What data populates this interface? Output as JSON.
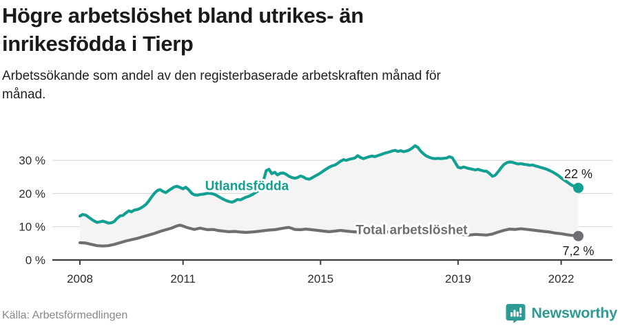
{
  "header": {
    "title": "Högre arbetslöshet bland utrikes- än inrikesfödda i Tierp",
    "subtitle": "Arbetssökande som andel av den registerbaserade arbetskraften månad för månad."
  },
  "footer": {
    "source": "Källa: Arbetsförmedlingen",
    "brand": "Newsworthy"
  },
  "colors": {
    "foreign_born_line": "#12a092",
    "total_line": "#6e6e73",
    "fill_between": "#f4f4f4",
    "axis": "#3d3d3d",
    "grid": "#d9d9d9",
    "brand_teal": "#2d9a94"
  },
  "chart_data": {
    "type": "line",
    "title": "Högre arbetslöshet bland utrikes- än inrikesfödda i Tierp",
    "subtitle": "Arbetssökande som andel av den registerbaserade arbetskraften månad för månad.",
    "xlabel": "",
    "ylabel": "",
    "x_axis": {
      "ticks": [
        2008,
        2011,
        2015,
        2019,
        2022
      ],
      "range": [
        2008.0,
        2022.6
      ]
    },
    "y_axis": {
      "tick_values": [
        0,
        10,
        20,
        30
      ],
      "tick_labels": [
        "0 %",
        "10 %",
        "20 %",
        "30 %"
      ],
      "range": [
        0,
        36
      ],
      "grid": true
    },
    "legend_position": "inline-labels",
    "fill_between_series": true,
    "series": [
      {
        "name": "Utlandsfödda",
        "color": "#12a092",
        "end_label": "22 %",
        "label_at": [
          2012.86,
          22.36
        ],
        "points": [
          [
            2008.0,
            13.2
          ],
          [
            2008.08,
            13.7
          ],
          [
            2008.17,
            13.5
          ],
          [
            2008.25,
            12.9
          ],
          [
            2008.33,
            12.3
          ],
          [
            2008.42,
            11.7
          ],
          [
            2008.5,
            11.3
          ],
          [
            2008.58,
            11.5
          ],
          [
            2008.67,
            11.7
          ],
          [
            2008.75,
            11.4
          ],
          [
            2008.83,
            11.1
          ],
          [
            2008.92,
            11.2
          ],
          [
            2009.0,
            11.6
          ],
          [
            2009.08,
            12.5
          ],
          [
            2009.17,
            13.3
          ],
          [
            2009.25,
            13.4
          ],
          [
            2009.33,
            14.1
          ],
          [
            2009.42,
            14.8
          ],
          [
            2009.5,
            14.5
          ],
          [
            2009.58,
            15.0
          ],
          [
            2009.67,
            15.2
          ],
          [
            2009.75,
            15.5
          ],
          [
            2009.83,
            16.0
          ],
          [
            2009.92,
            16.7
          ],
          [
            2010.0,
            17.7
          ],
          [
            2010.08,
            18.9
          ],
          [
            2010.17,
            20.1
          ],
          [
            2010.25,
            20.9
          ],
          [
            2010.33,
            21.2
          ],
          [
            2010.42,
            20.6
          ],
          [
            2010.5,
            20.3
          ],
          [
            2010.58,
            20.9
          ],
          [
            2010.67,
            21.5
          ],
          [
            2010.75,
            22.0
          ],
          [
            2010.83,
            22.2
          ],
          [
            2010.92,
            21.8
          ],
          [
            2011.0,
            21.4
          ],
          [
            2011.08,
            21.9
          ],
          [
            2011.17,
            21.1
          ],
          [
            2011.25,
            20.1
          ],
          [
            2011.33,
            19.6
          ],
          [
            2011.42,
            19.5
          ],
          [
            2011.5,
            19.7
          ],
          [
            2011.58,
            19.8
          ],
          [
            2011.67,
            20.0
          ],
          [
            2011.75,
            20.1
          ],
          [
            2011.83,
            20.0
          ],
          [
            2011.92,
            19.7
          ],
          [
            2012.0,
            19.3
          ],
          [
            2012.08,
            18.8
          ],
          [
            2012.17,
            18.3
          ],
          [
            2012.25,
            17.9
          ],
          [
            2012.33,
            17.6
          ],
          [
            2012.42,
            17.4
          ],
          [
            2012.5,
            17.7
          ],
          [
            2012.58,
            18.2
          ],
          [
            2012.67,
            18.1
          ],
          [
            2012.75,
            18.5
          ],
          [
            2012.83,
            18.9
          ],
          [
            2012.92,
            19.2
          ],
          [
            2013.0,
            19.6
          ],
          [
            2013.08,
            20.1
          ],
          [
            2013.17,
            20.7
          ],
          [
            2013.25,
            21.6
          ],
          [
            2013.33,
            23.6
          ],
          [
            2013.42,
            26.9
          ],
          [
            2013.5,
            27.3
          ],
          [
            2013.58,
            26.0
          ],
          [
            2013.67,
            26.4
          ],
          [
            2013.75,
            25.6
          ],
          [
            2013.83,
            26.1
          ],
          [
            2013.92,
            26.2
          ],
          [
            2014.0,
            25.8
          ],
          [
            2014.08,
            25.2
          ],
          [
            2014.17,
            24.8
          ],
          [
            2014.25,
            24.6
          ],
          [
            2014.33,
            24.8
          ],
          [
            2014.42,
            25.3
          ],
          [
            2014.5,
            25.0
          ],
          [
            2014.58,
            24.5
          ],
          [
            2014.67,
            24.3
          ],
          [
            2014.75,
            24.7
          ],
          [
            2014.83,
            25.2
          ],
          [
            2014.92,
            25.7
          ],
          [
            2015.0,
            26.2
          ],
          [
            2015.08,
            26.8
          ],
          [
            2015.17,
            27.4
          ],
          [
            2015.25,
            27.9
          ],
          [
            2015.33,
            28.3
          ],
          [
            2015.42,
            28.6
          ],
          [
            2015.5,
            29.1
          ],
          [
            2015.58,
            29.7
          ],
          [
            2015.67,
            30.2
          ],
          [
            2015.75,
            30.0
          ],
          [
            2015.83,
            30.3
          ],
          [
            2015.92,
            30.5
          ],
          [
            2016.0,
            30.7
          ],
          [
            2016.08,
            31.4
          ],
          [
            2016.17,
            30.8
          ],
          [
            2016.25,
            30.5
          ],
          [
            2016.33,
            30.8
          ],
          [
            2016.42,
            31.1
          ],
          [
            2016.5,
            31.3
          ],
          [
            2016.58,
            31.1
          ],
          [
            2016.67,
            31.4
          ],
          [
            2016.75,
            31.7
          ],
          [
            2016.83,
            32.0
          ],
          [
            2016.92,
            32.3
          ],
          [
            2017.0,
            32.5
          ],
          [
            2017.08,
            32.8
          ],
          [
            2017.17,
            33.0
          ],
          [
            2017.25,
            32.7
          ],
          [
            2017.33,
            32.9
          ],
          [
            2017.42,
            32.6
          ],
          [
            2017.5,
            32.8
          ],
          [
            2017.58,
            33.1
          ],
          [
            2017.67,
            33.7
          ],
          [
            2017.75,
            34.4
          ],
          [
            2017.83,
            33.9
          ],
          [
            2017.92,
            32.7
          ],
          [
            2018.0,
            31.9
          ],
          [
            2018.08,
            31.3
          ],
          [
            2018.17,
            30.9
          ],
          [
            2018.25,
            30.6
          ],
          [
            2018.33,
            30.5
          ],
          [
            2018.42,
            30.6
          ],
          [
            2018.5,
            30.5
          ],
          [
            2018.58,
            30.6
          ],
          [
            2018.67,
            30.7
          ],
          [
            2018.75,
            31.1
          ],
          [
            2018.83,
            30.8
          ],
          [
            2018.92,
            29.3
          ],
          [
            2019.0,
            27.9
          ],
          [
            2019.08,
            27.7
          ],
          [
            2019.17,
            28.0
          ],
          [
            2019.25,
            27.7
          ],
          [
            2019.33,
            27.5
          ],
          [
            2019.42,
            27.3
          ],
          [
            2019.5,
            27.1
          ],
          [
            2019.58,
            27.3
          ],
          [
            2019.67,
            27.0
          ],
          [
            2019.75,
            26.8
          ],
          [
            2019.83,
            26.7
          ],
          [
            2019.92,
            26.0
          ],
          [
            2020.0,
            25.2
          ],
          [
            2020.08,
            25.5
          ],
          [
            2020.17,
            26.6
          ],
          [
            2020.25,
            27.7
          ],
          [
            2020.33,
            28.7
          ],
          [
            2020.42,
            29.3
          ],
          [
            2020.5,
            29.5
          ],
          [
            2020.58,
            29.4
          ],
          [
            2020.67,
            29.1
          ],
          [
            2020.75,
            28.9
          ],
          [
            2020.83,
            29.0
          ],
          [
            2020.92,
            28.8
          ],
          [
            2021.0,
            28.7
          ],
          [
            2021.08,
            28.5
          ],
          [
            2021.17,
            28.6
          ],
          [
            2021.25,
            28.3
          ],
          [
            2021.33,
            28.1
          ],
          [
            2021.42,
            27.8
          ],
          [
            2021.5,
            27.6
          ],
          [
            2021.58,
            27.3
          ],
          [
            2021.67,
            26.9
          ],
          [
            2021.75,
            26.5
          ],
          [
            2021.83,
            26.0
          ],
          [
            2021.92,
            25.4
          ],
          [
            2022.0,
            24.7
          ],
          [
            2022.08,
            24.1
          ],
          [
            2022.17,
            23.5
          ],
          [
            2022.25,
            22.9
          ],
          [
            2022.33,
            22.4
          ],
          [
            2022.42,
            22.0
          ],
          [
            2022.5,
            21.7
          ]
        ]
      },
      {
        "name": "Total arbetslöshet",
        "color": "#6e6e73",
        "end_label": "7,2 %",
        "label_at": [
          2017.65,
          9.1
        ],
        "points": [
          [
            2008.0,
            5.2
          ],
          [
            2008.17,
            5.1
          ],
          [
            2008.33,
            4.7
          ],
          [
            2008.5,
            4.3
          ],
          [
            2008.67,
            4.2
          ],
          [
            2008.83,
            4.3
          ],
          [
            2009.0,
            4.7
          ],
          [
            2009.17,
            5.2
          ],
          [
            2009.33,
            5.7
          ],
          [
            2009.5,
            6.1
          ],
          [
            2009.67,
            6.5
          ],
          [
            2009.83,
            7.0
          ],
          [
            2010.0,
            7.5
          ],
          [
            2010.17,
            8.0
          ],
          [
            2010.33,
            8.6
          ],
          [
            2010.5,
            9.1
          ],
          [
            2010.67,
            9.6
          ],
          [
            2010.83,
            10.3
          ],
          [
            2010.92,
            10.5
          ],
          [
            2011.0,
            10.2
          ],
          [
            2011.08,
            9.9
          ],
          [
            2011.17,
            9.6
          ],
          [
            2011.25,
            9.4
          ],
          [
            2011.33,
            9.2
          ],
          [
            2011.42,
            9.4
          ],
          [
            2011.5,
            9.6
          ],
          [
            2011.58,
            9.4
          ],
          [
            2011.67,
            9.2
          ],
          [
            2011.75,
            9.1
          ],
          [
            2011.83,
            9.2
          ],
          [
            2011.92,
            9.1
          ],
          [
            2012.0,
            8.9
          ],
          [
            2012.17,
            8.7
          ],
          [
            2012.33,
            8.5
          ],
          [
            2012.5,
            8.6
          ],
          [
            2012.67,
            8.4
          ],
          [
            2012.83,
            8.3
          ],
          [
            2013.0,
            8.4
          ],
          [
            2013.17,
            8.6
          ],
          [
            2013.33,
            8.8
          ],
          [
            2013.5,
            9.0
          ],
          [
            2013.67,
            9.1
          ],
          [
            2013.83,
            9.4
          ],
          [
            2014.0,
            9.7
          ],
          [
            2014.08,
            9.8
          ],
          [
            2014.17,
            9.5
          ],
          [
            2014.25,
            9.2
          ],
          [
            2014.42,
            9.1
          ],
          [
            2014.58,
            9.3
          ],
          [
            2014.75,
            9.1
          ],
          [
            2014.92,
            8.9
          ],
          [
            2015.08,
            8.7
          ],
          [
            2015.25,
            8.5
          ],
          [
            2015.42,
            8.7
          ],
          [
            2015.58,
            8.9
          ],
          [
            2015.75,
            8.7
          ],
          [
            2015.92,
            8.5
          ],
          [
            2016.08,
            8.4
          ],
          [
            2016.25,
            8.6
          ],
          [
            2016.42,
            8.5
          ],
          [
            2016.58,
            8.7
          ],
          [
            2016.75,
            8.5
          ],
          [
            2016.92,
            8.4
          ],
          [
            2017.08,
            8.6
          ],
          [
            2017.25,
            8.5
          ],
          [
            2017.42,
            8.3
          ],
          [
            2017.58,
            8.5
          ],
          [
            2017.75,
            8.4
          ],
          [
            2017.92,
            8.2
          ],
          [
            2018.08,
            8.3
          ],
          [
            2018.25,
            8.4
          ],
          [
            2018.42,
            8.2
          ],
          [
            2018.58,
            8.0
          ],
          [
            2018.75,
            8.1
          ],
          [
            2018.92,
            7.9
          ],
          [
            2019.0,
            7.8
          ],
          [
            2019.17,
            7.6
          ],
          [
            2019.33,
            7.5
          ],
          [
            2019.5,
            7.7
          ],
          [
            2019.67,
            7.6
          ],
          [
            2019.83,
            7.5
          ],
          [
            2020.0,
            7.8
          ],
          [
            2020.08,
            8.1
          ],
          [
            2020.17,
            8.4
          ],
          [
            2020.33,
            8.9
          ],
          [
            2020.5,
            9.3
          ],
          [
            2020.67,
            9.2
          ],
          [
            2020.83,
            9.4
          ],
          [
            2021.0,
            9.2
          ],
          [
            2021.17,
            9.0
          ],
          [
            2021.33,
            8.8
          ],
          [
            2021.5,
            8.6
          ],
          [
            2021.67,
            8.4
          ],
          [
            2021.83,
            8.1
          ],
          [
            2022.0,
            7.9
          ],
          [
            2022.17,
            7.6
          ],
          [
            2022.33,
            7.4
          ],
          [
            2022.5,
            7.2
          ]
        ]
      }
    ]
  }
}
